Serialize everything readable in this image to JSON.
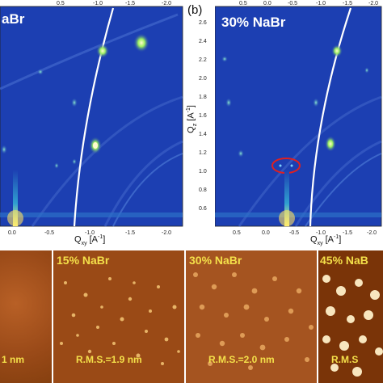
{
  "panels": {
    "left_giwaxs": {
      "label": "aBr"
    },
    "right_giwaxs": {
      "letter": "(b)",
      "label": "30% NaBr"
    },
    "axis": {
      "qxy": "Q",
      "qxy_sub": "xy",
      "qxy_unit": " [A",
      "qz": "Q",
      "qz_sub": "z",
      "qz_unit": " [A",
      "inverse": "-1",
      "close": "]"
    },
    "ticks": {
      "top_left": [
        "0.5",
        "-1.0",
        "-1.5",
        "-2.0"
      ],
      "bottom_left": [
        "0.0",
        "-0.5",
        "-1.0",
        "-1.5",
        "-2.0"
      ],
      "top_right": [
        "0.5",
        "0.0",
        "-0.5",
        "-1.0",
        "-1.5",
        "-2.0"
      ],
      "bottom_right": [
        "0.5",
        "0.0",
        "-0.5",
        "-1.0",
        "-1.5",
        "-2.0"
      ],
      "qz": [
        "2.6",
        "2.4",
        "2.2",
        "2.0",
        "1.8",
        "1.6",
        "1.4",
        "1.2",
        "1.0",
        "0.8",
        "0.6"
      ]
    }
  },
  "afm": {
    "panels": [
      {
        "label": "",
        "rms": "1 nm"
      },
      {
        "label": "15% NaBr",
        "rms": "R.M.S.=1.9 nm"
      },
      {
        "label": "30% NaBr",
        "rms": "R.M.S.=2.0 nm"
      },
      {
        "label": "45% NaB",
        "rms": "R.M.S"
      }
    ]
  },
  "colors": {
    "giwaxs_background": "#1c3fb2",
    "afm_background": "#a0521c",
    "label_yellow": "#f4e04a",
    "highlight_ring": "#e02020"
  }
}
